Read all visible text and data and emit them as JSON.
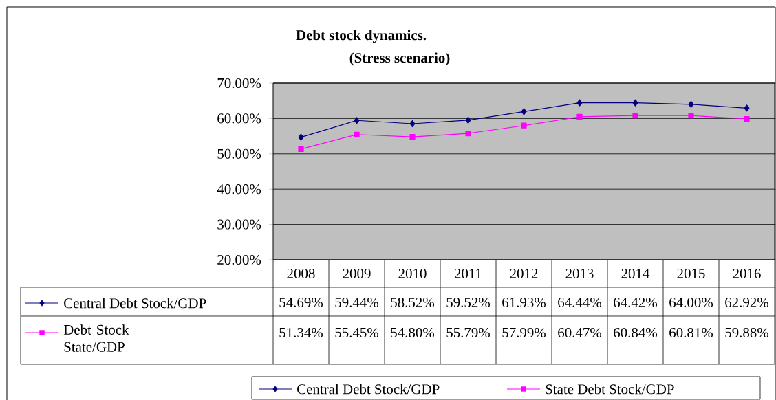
{
  "chart_data": {
    "type": "line",
    "title": "Debt stock dynamics.",
    "subtitle": "(Stress scenario)",
    "categories": [
      "2008",
      "2009",
      "2010",
      "2011",
      "2012",
      "2013",
      "2014",
      "2015",
      "2016"
    ],
    "series": [
      {
        "name": "Central Debt Stock/GDP",
        "color": "#000080",
        "marker": "diamond",
        "values": [
          54.69,
          59.44,
          58.52,
          59.52,
          61.93,
          64.44,
          64.42,
          64.0,
          62.92
        ],
        "value_labels": [
          "54.69%",
          "59.44%",
          "58.52%",
          "59.52%",
          "61.93%",
          "64.44%",
          "64.42%",
          "64.00%",
          "62.92%"
        ]
      },
      {
        "name": "State Debt Stock/GDP",
        "color": "#ff00ff",
        "marker": "square",
        "values": [
          51.34,
          55.45,
          54.8,
          55.79,
          57.99,
          60.47,
          60.84,
          60.81,
          59.88
        ],
        "value_labels": [
          "51.34%",
          "55.45%",
          "54.80%",
          "55.79%",
          "57.99%",
          "60.47%",
          "60.84%",
          "60.81%",
          "59.88%"
        ]
      }
    ],
    "annotations": [
      "Debt Stock State/GDP"
    ],
    "ylim": [
      20,
      70
    ],
    "yticks": [
      {
        "value": 20,
        "label": "20.00%"
      },
      {
        "value": 30,
        "label": "30.00%"
      },
      {
        "value": 40,
        "label": "40.00%"
      },
      {
        "value": 50,
        "label": "50.00%"
      },
      {
        "value": 60,
        "label": "60.00%"
      },
      {
        "value": 70,
        "label": "70.00%"
      }
    ],
    "grid": "y",
    "legend": "bottom",
    "line_style": "solid"
  }
}
